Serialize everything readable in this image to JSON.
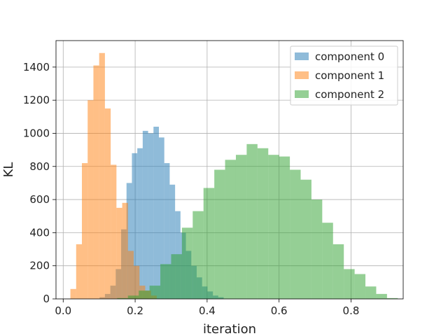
{
  "chart_data": {
    "type": "bar",
    "title": "",
    "xlabel": "iteration",
    "ylabel": "KL",
    "xlim": [
      -0.02,
      0.945
    ],
    "ylim": [
      0,
      1560
    ],
    "xticks": [
      0.0,
      0.2,
      0.4,
      0.6,
      0.8
    ],
    "xtick_labels": [
      "0.0",
      "0.2",
      "0.4",
      "0.6",
      "0.8"
    ],
    "yticks": [
      0,
      200,
      400,
      600,
      800,
      1000,
      1200,
      1400
    ],
    "ytick_labels": [
      "0",
      "200",
      "400",
      "600",
      "800",
      "1000",
      "1200",
      "1400"
    ],
    "grid": true,
    "legend_position": "top-right",
    "series": [
      {
        "name": "component 0",
        "color": "#1f77b4",
        "bins": [
          [
            0.101,
            0.116,
            10
          ],
          [
            0.116,
            0.131,
            30
          ],
          [
            0.131,
            0.146,
            80
          ],
          [
            0.146,
            0.161,
            180
          ],
          [
            0.161,
            0.176,
            420
          ],
          [
            0.176,
            0.191,
            700
          ],
          [
            0.191,
            0.206,
            880
          ],
          [
            0.206,
            0.221,
            910
          ],
          [
            0.221,
            0.236,
            1015
          ],
          [
            0.236,
            0.251,
            1000
          ],
          [
            0.251,
            0.266,
            1040
          ],
          [
            0.266,
            0.281,
            975
          ],
          [
            0.281,
            0.296,
            820
          ],
          [
            0.296,
            0.311,
            690
          ],
          [
            0.311,
            0.326,
            530
          ],
          [
            0.326,
            0.341,
            400
          ],
          [
            0.341,
            0.356,
            290
          ],
          [
            0.356,
            0.371,
            200
          ],
          [
            0.371,
            0.386,
            130
          ],
          [
            0.386,
            0.401,
            75
          ],
          [
            0.401,
            0.416,
            45
          ],
          [
            0.416,
            0.431,
            20
          ],
          [
            0.431,
            0.446,
            10
          ]
        ]
      },
      {
        "name": "component 1",
        "color": "#ff7f0e",
        "bins": [
          [
            0.02,
            0.036,
            60
          ],
          [
            0.036,
            0.052,
            330
          ],
          [
            0.052,
            0.068,
            820
          ],
          [
            0.068,
            0.084,
            1200
          ],
          [
            0.084,
            0.1,
            1410
          ],
          [
            0.1,
            0.116,
            1485
          ],
          [
            0.116,
            0.132,
            1150
          ],
          [
            0.132,
            0.148,
            810
          ],
          [
            0.148,
            0.164,
            550
          ],
          [
            0.164,
            0.18,
            580
          ],
          [
            0.18,
            0.196,
            290
          ],
          [
            0.196,
            0.212,
            200
          ],
          [
            0.212,
            0.228,
            80
          ],
          [
            0.228,
            0.244,
            50
          ],
          [
            0.244,
            0.26,
            20
          ]
        ]
      },
      {
        "name": "component 2",
        "color": "#2ca02c",
        "bins": [
          [
            0.15,
            0.18,
            5
          ],
          [
            0.18,
            0.21,
            20
          ],
          [
            0.21,
            0.24,
            50
          ],
          [
            0.24,
            0.27,
            80
          ],
          [
            0.27,
            0.3,
            210
          ],
          [
            0.3,
            0.33,
            270
          ],
          [
            0.33,
            0.36,
            430
          ],
          [
            0.36,
            0.39,
            530
          ],
          [
            0.39,
            0.42,
            670
          ],
          [
            0.42,
            0.45,
            780
          ],
          [
            0.45,
            0.48,
            840
          ],
          [
            0.48,
            0.51,
            870
          ],
          [
            0.51,
            0.54,
            935
          ],
          [
            0.54,
            0.57,
            910
          ],
          [
            0.57,
            0.6,
            870
          ],
          [
            0.6,
            0.63,
            860
          ],
          [
            0.63,
            0.66,
            780
          ],
          [
            0.66,
            0.69,
            720
          ],
          [
            0.69,
            0.72,
            600
          ],
          [
            0.72,
            0.75,
            460
          ],
          [
            0.75,
            0.78,
            330
          ],
          [
            0.78,
            0.81,
            180
          ],
          [
            0.81,
            0.84,
            150
          ],
          [
            0.84,
            0.87,
            75
          ],
          [
            0.87,
            0.9,
            30
          ],
          [
            0.9,
            0.93,
            5
          ]
        ]
      }
    ]
  }
}
